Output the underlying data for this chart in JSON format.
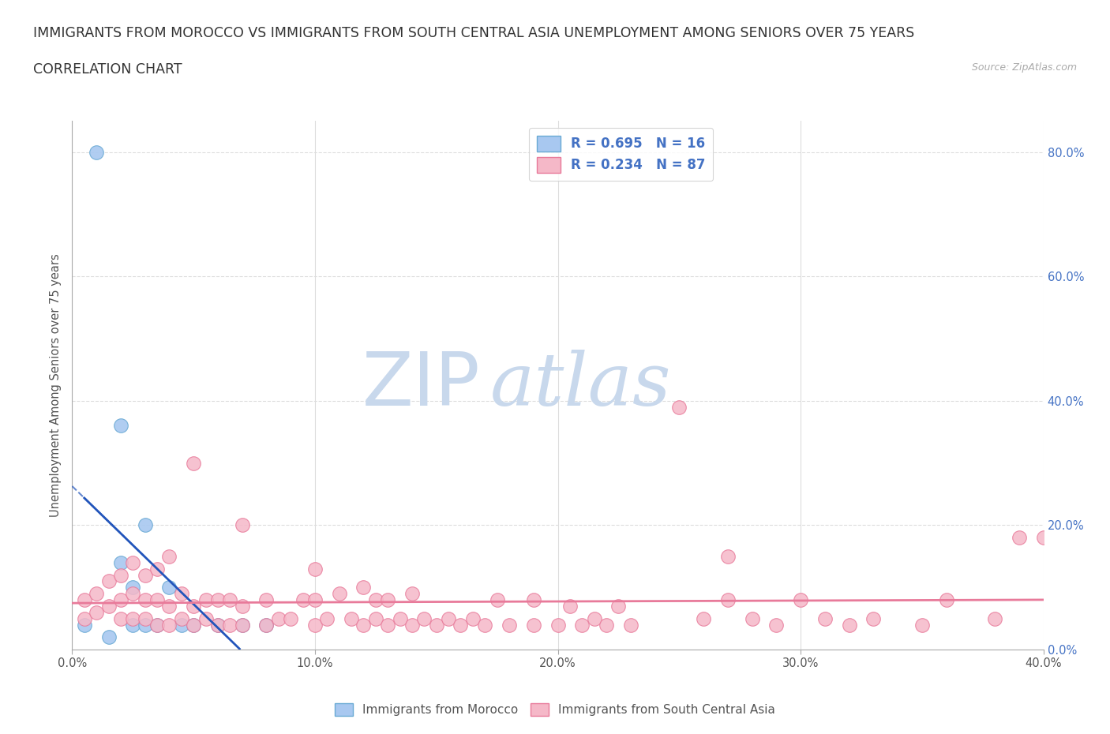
{
  "title_line1": "IMMIGRANTS FROM MOROCCO VS IMMIGRANTS FROM SOUTH CENTRAL ASIA UNEMPLOYMENT AMONG SENIORS OVER 75 YEARS",
  "title_line2": "CORRELATION CHART",
  "source": "Source: ZipAtlas.com",
  "ylabel": "Unemployment Among Seniors over 75 years",
  "xlim": [
    0.0,
    0.4
  ],
  "ylim": [
    0.0,
    0.85
  ],
  "xtick_labels": [
    "0.0%",
    "10.0%",
    "20.0%",
    "30.0%",
    "40.0%"
  ],
  "xtick_vals": [
    0.0,
    0.1,
    0.2,
    0.3,
    0.4
  ],
  "ytick_labels": [
    "0.0%",
    "20.0%",
    "40.0%",
    "60.0%",
    "80.0%"
  ],
  "ytick_vals": [
    0.0,
    0.2,
    0.4,
    0.6,
    0.8
  ],
  "morocco_color": "#a8c8f0",
  "morocco_edge": "#6aaad4",
  "sca_color": "#f5b8c8",
  "sca_edge": "#e87a9a",
  "trendline_morocco_color": "#2255bb",
  "trendline_sca_color": "#e87a9a",
  "R_morocco": 0.695,
  "N_morocco": 16,
  "R_sca": 0.234,
  "N_sca": 87,
  "watermark_zip": "ZIP",
  "watermark_atlas": "atlas",
  "watermark_color_zip": "#c8d8ec",
  "watermark_color_atlas": "#c8d8ec",
  "grid_color": "#dddddd",
  "legend_text_color": "#4472c4",
  "title_fontsize": 12.5,
  "subtitle_fontsize": 12.5,
  "axis_label_fontsize": 10.5,
  "tick_fontsize": 10.5,
  "legend_fontsize": 12,
  "morocco_x": [
    0.005,
    0.01,
    0.015,
    0.02,
    0.02,
    0.025,
    0.025,
    0.03,
    0.03,
    0.035,
    0.04,
    0.045,
    0.05,
    0.06,
    0.07,
    0.08
  ],
  "morocco_y": [
    0.04,
    0.8,
    0.02,
    0.14,
    0.36,
    0.1,
    0.04,
    0.2,
    0.04,
    0.04,
    0.1,
    0.04,
    0.04,
    0.04,
    0.04,
    0.04
  ],
  "sca_x": [
    0.005,
    0.005,
    0.01,
    0.01,
    0.015,
    0.015,
    0.02,
    0.02,
    0.02,
    0.025,
    0.025,
    0.025,
    0.03,
    0.03,
    0.03,
    0.035,
    0.035,
    0.035,
    0.04,
    0.04,
    0.04,
    0.045,
    0.045,
    0.05,
    0.05,
    0.05,
    0.055,
    0.055,
    0.06,
    0.06,
    0.065,
    0.065,
    0.07,
    0.07,
    0.07,
    0.08,
    0.08,
    0.085,
    0.09,
    0.095,
    0.1,
    0.1,
    0.1,
    0.105,
    0.11,
    0.115,
    0.12,
    0.12,
    0.125,
    0.125,
    0.13,
    0.13,
    0.135,
    0.14,
    0.14,
    0.145,
    0.15,
    0.155,
    0.16,
    0.165,
    0.17,
    0.175,
    0.18,
    0.19,
    0.19,
    0.2,
    0.205,
    0.21,
    0.215,
    0.22,
    0.225,
    0.23,
    0.25,
    0.26,
    0.27,
    0.27,
    0.28,
    0.29,
    0.3,
    0.31,
    0.32,
    0.33,
    0.35,
    0.36,
    0.38,
    0.39,
    0.4
  ],
  "sca_y": [
    0.08,
    0.05,
    0.06,
    0.09,
    0.07,
    0.11,
    0.05,
    0.08,
    0.12,
    0.05,
    0.09,
    0.14,
    0.05,
    0.08,
    0.12,
    0.04,
    0.08,
    0.13,
    0.04,
    0.07,
    0.15,
    0.05,
    0.09,
    0.04,
    0.07,
    0.3,
    0.05,
    0.08,
    0.04,
    0.08,
    0.04,
    0.08,
    0.04,
    0.07,
    0.2,
    0.04,
    0.08,
    0.05,
    0.05,
    0.08,
    0.04,
    0.08,
    0.13,
    0.05,
    0.09,
    0.05,
    0.04,
    0.1,
    0.05,
    0.08,
    0.04,
    0.08,
    0.05,
    0.04,
    0.09,
    0.05,
    0.04,
    0.05,
    0.04,
    0.05,
    0.04,
    0.08,
    0.04,
    0.04,
    0.08,
    0.04,
    0.07,
    0.04,
    0.05,
    0.04,
    0.07,
    0.04,
    0.39,
    0.05,
    0.08,
    0.15,
    0.05,
    0.04,
    0.08,
    0.05,
    0.04,
    0.05,
    0.04,
    0.08,
    0.05,
    0.18,
    0.18
  ]
}
